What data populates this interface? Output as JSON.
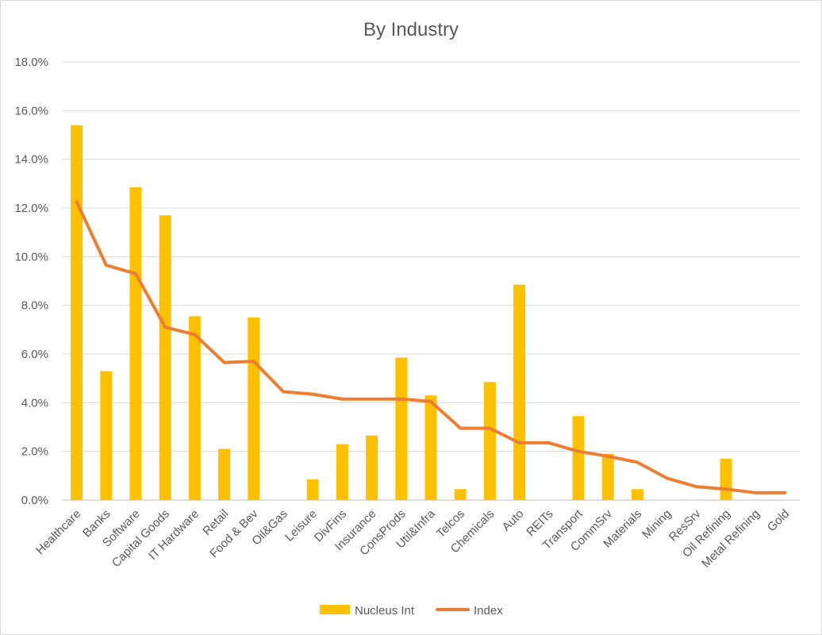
{
  "chart_data": {
    "type": "bar",
    "title": "By Industry",
    "xlabel": "",
    "ylabel": "",
    "ylim": [
      0,
      18
    ],
    "yticks": [
      "0.0%",
      "2.0%",
      "4.0%",
      "6.0%",
      "8.0%",
      "10.0%",
      "12.0%",
      "14.0%",
      "16.0%",
      "18.0%"
    ],
    "grid": true,
    "legend_position": "bottom",
    "categories": [
      "Healthcare",
      "Banks",
      "Software",
      "Capital Goods",
      "IT Hardware",
      "Retail",
      "Food & Bev",
      "Oil&Gas",
      "Leisure",
      "DivFins",
      "Insurance",
      "ConsProds",
      "Util&Infra",
      "Telcos",
      "Chemicals",
      "Auto",
      "REITs",
      "Transport",
      "CommSrv",
      "Materials",
      "Mining",
      "ResSrv",
      "Oil Refining",
      "Metal Refining",
      "Gold"
    ],
    "series": [
      {
        "name": "Nucleus Int",
        "type": "bar",
        "color": "#FFC000",
        "values": [
          15.4,
          5.3,
          12.85,
          11.7,
          7.55,
          2.1,
          7.5,
          0,
          0.85,
          2.3,
          2.65,
          5.85,
          4.3,
          0.45,
          4.85,
          8.85,
          0,
          3.45,
          1.9,
          0.45,
          0,
          0,
          1.7,
          0,
          0
        ]
      },
      {
        "name": "Index",
        "type": "line",
        "color": "#ED7D31",
        "values": [
          12.25,
          9.65,
          9.3,
          7.1,
          6.8,
          5.65,
          5.7,
          4.45,
          4.35,
          4.15,
          4.15,
          4.15,
          4.05,
          2.95,
          2.95,
          2.35,
          2.35,
          2.0,
          1.8,
          1.55,
          0.9,
          0.55,
          0.45,
          0.3,
          0.3
        ]
      }
    ]
  }
}
